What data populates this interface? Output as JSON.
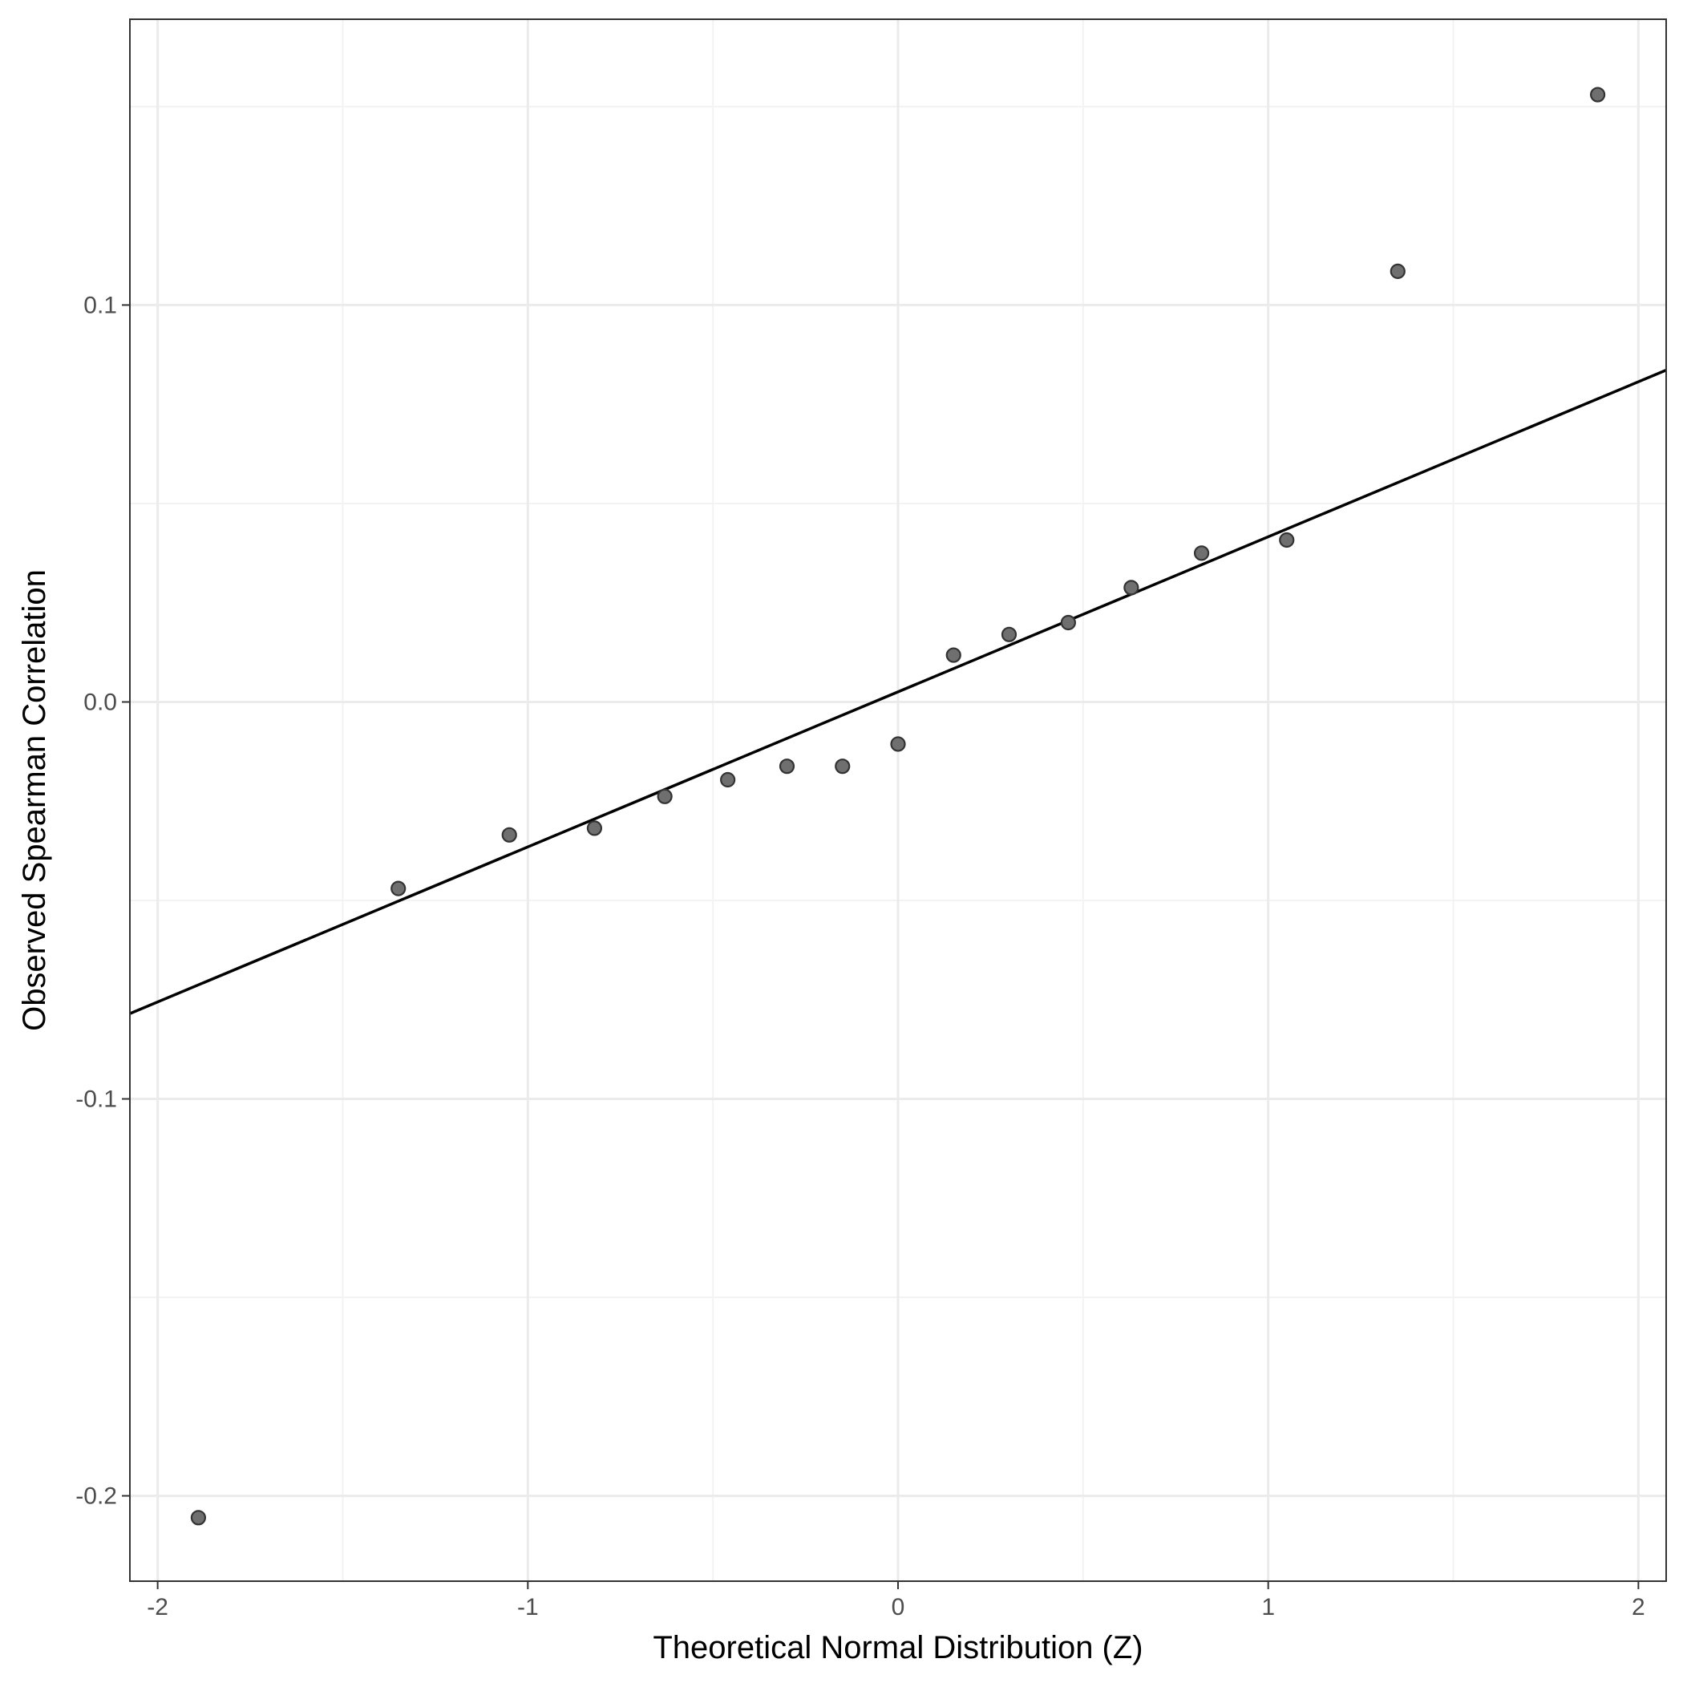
{
  "chart_data": {
    "type": "scatter",
    "title": "",
    "xlabel": "Theoretical Normal Distribution (Z)",
    "ylabel": "Observed Spearman Correlation",
    "xlim": [
      -2.075,
      2.075
    ],
    "ylim": [
      -0.2215,
      0.172
    ],
    "x_ticks": [
      -2,
      -1,
      0,
      1,
      2
    ],
    "x_tick_labels": [
      "-2",
      "-1",
      "0",
      "1",
      "2"
    ],
    "y_ticks": [
      -0.2,
      -0.1,
      0.0,
      0.1
    ],
    "y_tick_labels": [
      "-0.2",
      "-0.1",
      "0.0",
      "0.1"
    ],
    "x_minor_ticks": [
      -1.5,
      -0.5,
      0.5,
      1.5
    ],
    "y_minor_ticks": [
      -0.15,
      -0.05,
      0.05,
      0.15
    ],
    "grid": true,
    "points": {
      "x": [
        -1.89,
        -1.35,
        -1.05,
        -0.82,
        -0.63,
        -0.46,
        -0.3,
        -0.15,
        0.0,
        0.15,
        0.3,
        0.46,
        0.63,
        0.82,
        1.05,
        1.35,
        1.89
      ],
      "y": [
        -0.2055,
        -0.047,
        -0.0335,
        -0.0318,
        -0.0238,
        -0.0196,
        -0.0162,
        -0.0162,
        -0.0106,
        0.0118,
        0.017,
        0.02,
        0.0288,
        0.0375,
        0.0408,
        0.1085,
        0.153
      ]
    },
    "reference_line": {
      "x": [
        -2.075,
        2.075
      ],
      "y": [
        -0.0785,
        0.0836
      ]
    },
    "colors": {
      "point_fill": "#6f6f6f",
      "point_stroke": "#333333",
      "line": "#000000",
      "grid_major": "#ebebeb",
      "grid_minor": "#f3f3f3",
      "panel_border": "#333333"
    }
  }
}
